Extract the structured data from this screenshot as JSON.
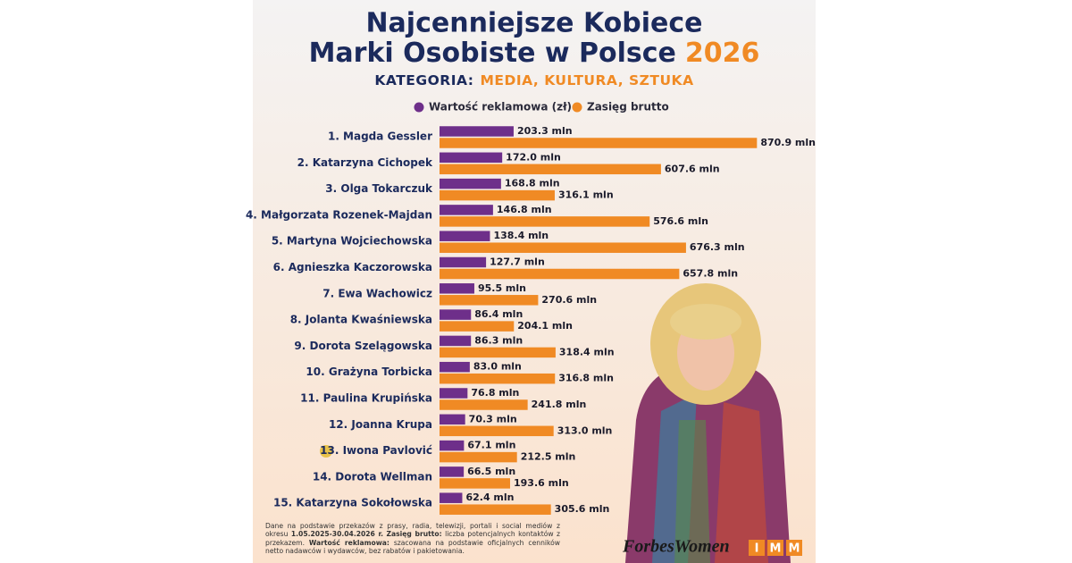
{
  "chart_data": {
    "type": "bar",
    "orientation": "horizontal",
    "title": "Najcenniejsze Kobiece",
    "title_line2": "Marki Osobiste w Polsce",
    "title_year": "2026",
    "subtitle_label": "KATEGORIA:",
    "subtitle": "MEDIA, KULTURA, SZTUKA",
    "categories": [
      "1. Magda Gessler",
      "2. Katarzyna Cichopek",
      "3. Olga Tokarczuk",
      "4. Małgorzata Rozenek-Majdan",
      "5. Martyna Wojciechowska",
      "6. Agnieszka Kaczorowska",
      "7. Ewa Wachowicz",
      "8. Jolanta Kwaśniewska",
      "9. Dorota Szelągowska",
      "10. Grażyna Torbicka",
      "11. Paulina Krupińska",
      "12. Joanna Krupa",
      "13. Iwona Pavlović",
      "14. Dorota Wellman",
      "15. Katarzyna Sokołowska"
    ],
    "series": [
      {
        "name": "Wartość reklamowa (zł)",
        "color": "#6e2f8a",
        "values": [
          203.3,
          172,
          168.8,
          146.8,
          138.4,
          127.7,
          95.5,
          86.4,
          86.3,
          83,
          76.8,
          70.3,
          67.1,
          66.5,
          62.4
        ],
        "value_labels": [
          "203.3 mln",
          "172.0 mln",
          "168.8 mln",
          "146.8 mln",
          "138.4 mln",
          "127.7 mln",
          "95.5 mln",
          "86.4 mln",
          "86.3 mln",
          "83.0 mln",
          "76.8 mln",
          "70.3 mln",
          "67.1 mln",
          "66.5 mln",
          "62.4 mln"
        ]
      },
      {
        "name": "Zasięg brutto",
        "color": "#f08a24",
        "values": [
          870.9,
          607.6,
          316.1,
          576.6,
          676.3,
          657.8,
          270.6,
          204.1,
          318.4,
          316.8,
          241.8,
          313,
          212.5,
          193.6,
          305.6
        ],
        "value_labels": [
          "870.9 mln",
          "607.6 mln",
          "316.1 mln",
          "576.6 mln",
          "676.3 mln",
          "657.8 mln",
          "270.6 mln",
          "204.1 mln",
          "318.4 mln",
          "316.8 mln",
          "241.8 mln",
          "313.0 mln",
          "212.5 mln",
          "193.6 mln",
          "305.6 mln"
        ]
      }
    ],
    "legend": "top"
  },
  "footnote": [
    {
      "text": "Dane na podstawie przekazów z prasy, radia, telewizji, portali i social mediów z okresu ",
      "bold": false
    },
    {
      "text": "1.05.2025-30.04.2026 r.",
      "bold": true
    },
    {
      "text": " ",
      "bold": false
    },
    {
      "text": "Zasięg brutto:",
      "bold": true
    },
    {
      "text": " liczba potencjalnych kontaktów z przekazem. ",
      "bold": false
    },
    {
      "text": "Wartość reklamowa:",
      "bold": true
    },
    {
      "text": " szacowana na podstawie oficjalnych cenników netto nadawców i wydawców, bez rabatów i pakietowania.",
      "bold": false
    }
  ],
  "logos": {
    "forbes": "ForbesWomen",
    "imm": [
      "I",
      "M",
      "M"
    ]
  }
}
